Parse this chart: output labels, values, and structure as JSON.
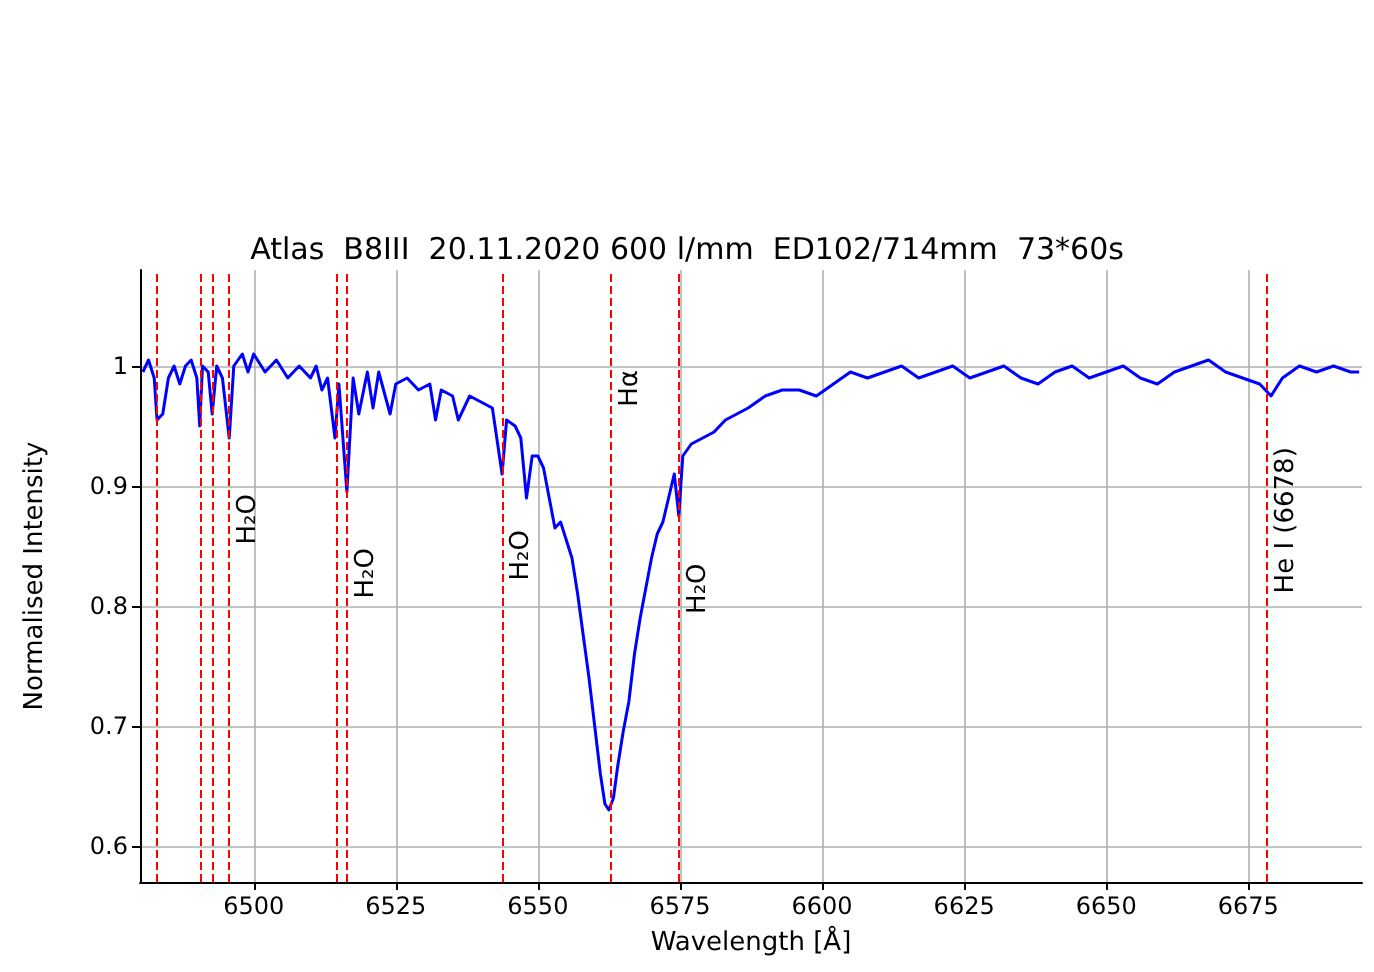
{
  "chart_data": {
    "type": "line",
    "title": "Atlas  B8III  20.11.2020 600 l/mm  ED102/714mm  73*60s",
    "xlabel": "Wavelength [Å]",
    "ylabel": "Normalised Intensity",
    "xlim": [
      6480,
      6695
    ],
    "xticks": [
      6500,
      6525,
      6550,
      6575,
      6600,
      6625,
      6650,
      6675
    ],
    "ylim": [
      0.57,
      1.08
    ],
    "yticks": [
      0.6,
      0.7,
      0.8,
      0.9,
      1.0
    ],
    "grid": true,
    "marker": "none",
    "line_style": "solid",
    "series": [
      {
        "color": "#0000ff",
        "x": [
          6480.5,
          6481.5,
          6482.5,
          6483,
          6484,
          6485,
          6486,
          6487,
          6488,
          6489,
          6490,
          6490.5,
          6491,
          6492,
          6492.7,
          6493.5,
          6494.5,
          6495.7,
          6496.5,
          6498,
          6499,
          6500,
          6502,
          6504,
          6506,
          6508,
          6510,
          6511,
          6512,
          6513,
          6514.3,
          6515,
          6516.4,
          6517.5,
          6518.5,
          6520,
          6521,
          6522,
          6524,
          6525,
          6527,
          6529,
          6531,
          6532,
          6533,
          6535,
          6536,
          6538,
          6540,
          6542,
          6543.7,
          6544.5,
          6546,
          6547,
          6548,
          6549,
          6550,
          6551,
          6552,
          6553,
          6554,
          6555,
          6556,
          6557,
          6558,
          6559,
          6560,
          6561,
          6561.8,
          6562.5,
          6563.3,
          6564,
          6565,
          6566,
          6567,
          6568,
          6569,
          6570,
          6571,
          6572,
          6573,
          6574,
          6574.8,
          6575.5,
          6577,
          6579,
          6581,
          6583,
          6585,
          6587,
          6590,
          6593,
          6596,
          6599,
          6602,
          6605,
          6608,
          6611,
          6614,
          6617,
          6620,
          6623,
          6626,
          6629,
          6632,
          6635,
          6638,
          6641,
          6644,
          6647,
          6650,
          6653,
          6656,
          6659,
          6662,
          6665,
          6668,
          6671,
          6674,
          6677,
          6679,
          6681,
          6684,
          6687,
          6690,
          6693,
          6694.5
        ],
        "values": [
          0.995,
          1.005,
          0.99,
          0.955,
          0.96,
          0.99,
          1.0,
          0.985,
          1.0,
          1.005,
          0.99,
          0.95,
          1.0,
          0.995,
          0.96,
          1.0,
          0.99,
          0.94,
          1.0,
          1.01,
          0.995,
          1.01,
          0.995,
          1.005,
          0.99,
          1.0,
          0.99,
          1.0,
          0.98,
          0.99,
          0.94,
          0.985,
          0.895,
          0.99,
          0.96,
          0.995,
          0.965,
          0.995,
          0.96,
          0.985,
          0.99,
          0.98,
          0.985,
          0.955,
          0.98,
          0.975,
          0.955,
          0.975,
          0.97,
          0.965,
          0.91,
          0.955,
          0.95,
          0.94,
          0.89,
          0.925,
          0.925,
          0.915,
          0.89,
          0.865,
          0.87,
          0.855,
          0.84,
          0.81,
          0.775,
          0.74,
          0.7,
          0.66,
          0.635,
          0.63,
          0.64,
          0.665,
          0.695,
          0.72,
          0.76,
          0.79,
          0.815,
          0.84,
          0.86,
          0.87,
          0.89,
          0.91,
          0.875,
          0.925,
          0.935,
          0.94,
          0.945,
          0.955,
          0.96,
          0.965,
          0.975,
          0.98,
          0.98,
          0.975,
          0.985,
          0.995,
          0.99,
          0.995,
          1.0,
          0.99,
          0.995,
          1.0,
          0.99,
          0.995,
          1.0,
          0.99,
          0.985,
          0.995,
          1.0,
          0.99,
          0.995,
          1.0,
          0.99,
          0.985,
          0.995,
          1.0,
          1.005,
          0.995,
          0.99,
          0.985,
          0.975,
          0.99,
          1.0,
          0.995,
          1.0,
          0.995,
          0.995
        ]
      }
    ],
    "ref_lines": [
      {
        "axis": "x",
        "value": 6482.8,
        "color": "#ff0000",
        "line_style": "dashed"
      },
      {
        "axis": "x",
        "value": 6490.5,
        "color": "#ff0000",
        "line_style": "dashed"
      },
      {
        "axis": "x",
        "value": 6492.7,
        "color": "#ff0000",
        "line_style": "dashed"
      },
      {
        "axis": "x",
        "value": 6495.7,
        "color": "#ff0000",
        "line_style": "dashed",
        "label": "H₂O"
      },
      {
        "axis": "x",
        "value": 6514.5,
        "color": "#ff0000",
        "line_style": "dashed"
      },
      {
        "axis": "x",
        "value": 6516.4,
        "color": "#ff0000",
        "line_style": "dashed",
        "label": "H₂O"
      },
      {
        "axis": "x",
        "value": 6543.7,
        "color": "#ff0000",
        "line_style": "dashed",
        "label": "H₂O"
      },
      {
        "axis": "x",
        "value": 6562.8,
        "color": "#ff0000",
        "line_style": "dashed",
        "label": "Hα"
      },
      {
        "axis": "x",
        "value": 6574.9,
        "color": "#ff0000",
        "line_style": "dashed",
        "label": "H₂O"
      },
      {
        "axis": "x",
        "value": 6678.2,
        "color": "#ff0000",
        "line_style": "dashed",
        "label": "He I (6678)"
      }
    ]
  }
}
